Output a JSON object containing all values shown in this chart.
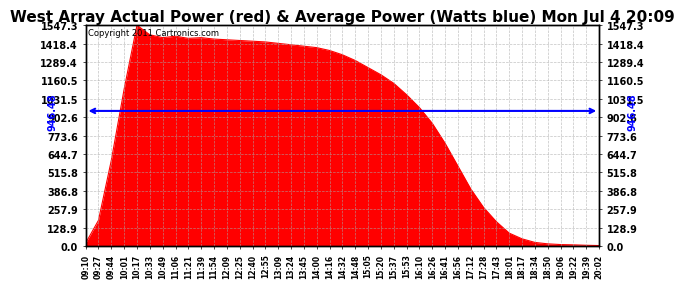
{
  "title": "West Array Actual Power (red) & Average Power (Watts blue) Mon Jul 4 20:09",
  "copyright": "Copyright 2011 Cartronics.com",
  "avg_line_y": 946.48,
  "avg_line_label": "946.48",
  "y_ticks": [
    0.0,
    128.9,
    257.9,
    386.8,
    515.8,
    644.7,
    773.6,
    902.6,
    1031.5,
    1160.5,
    1289.4,
    1418.4,
    1547.3
  ],
  "x_labels": [
    "09:10",
    "09:27",
    "09:44",
    "10:01",
    "10:17",
    "10:33",
    "10:49",
    "11:06",
    "11:21",
    "11:39",
    "11:54",
    "12:09",
    "12:25",
    "12:40",
    "12:55",
    "13:09",
    "13:24",
    "13:45",
    "14:00",
    "14:16",
    "14:32",
    "14:48",
    "15:05",
    "15:20",
    "15:37",
    "15:53",
    "16:10",
    "16:26",
    "16:41",
    "16:56",
    "17:12",
    "17:28",
    "17:43",
    "18:01",
    "18:17",
    "18:34",
    "18:50",
    "19:06",
    "19:22",
    "19:39",
    "20:02"
  ],
  "power_values": [
    20,
    180,
    600,
    1100,
    1547,
    1480,
    1460,
    1470,
    1455,
    1460,
    1450,
    1445,
    1440,
    1435,
    1430,
    1420,
    1410,
    1400,
    1390,
    1370,
    1340,
    1300,
    1250,
    1200,
    1140,
    1060,
    970,
    860,
    720,
    560,
    400,
    270,
    170,
    90,
    50,
    25,
    15,
    10,
    8,
    5,
    3
  ],
  "fill_color": "#FF0000",
  "line_color": "#0000FF",
  "title_fontsize": 11,
  "background_color": "#FFFFFF",
  "plot_bg_color": "#FFFFFF",
  "border_color": "#000000",
  "grid_color": "#AAAAAA"
}
